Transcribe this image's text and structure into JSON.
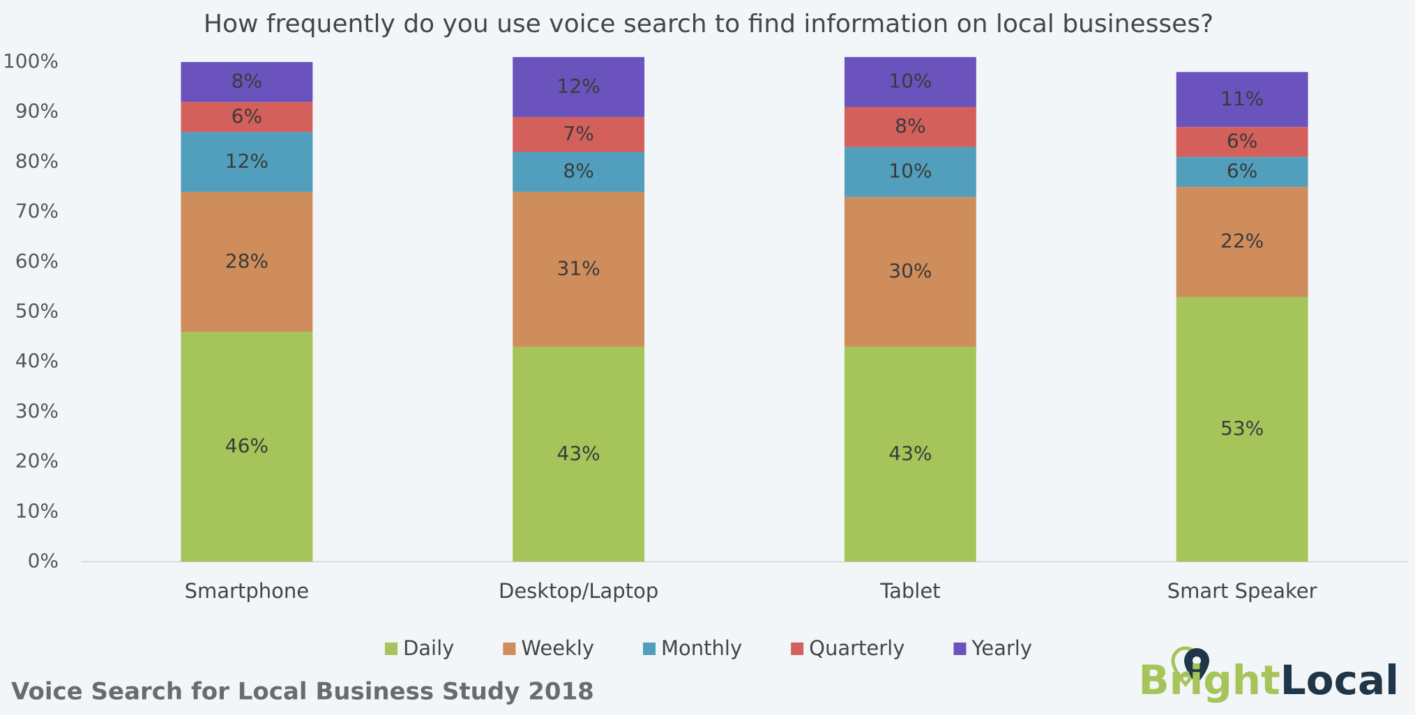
{
  "chart_data": {
    "type": "stacked_bar",
    "title": "How frequently do you use voice search to find information on local businesses?",
    "categories": [
      "Smartphone",
      "Desktop/Laptop",
      "Tablet",
      "Smart Speaker"
    ],
    "series": [
      {
        "name": "Daily",
        "color": "#a5c45a",
        "values": [
          46,
          43,
          43,
          53
        ],
        "value_labels": [
          "46%",
          "43%",
          "43%",
          "53%"
        ]
      },
      {
        "name": "Weekly",
        "color": "#d08d5c",
        "values": [
          28,
          31,
          30,
          22
        ],
        "value_labels": [
          "28%",
          "31%",
          "30%",
          "22%"
        ]
      },
      {
        "name": "Monthly",
        "color": "#529fbd",
        "values": [
          12,
          8,
          10,
          6
        ],
        "value_labels": [
          "12%",
          "8%",
          "10%",
          "6%"
        ]
      },
      {
        "name": "Quarterly",
        "color": "#d4605c",
        "values": [
          6,
          7,
          8,
          6
        ],
        "value_labels": [
          "6%",
          "7%",
          "8%",
          "6%"
        ]
      },
      {
        "name": "Yearly",
        "color": "#6a53bd",
        "values": [
          8,
          12,
          10,
          11
        ],
        "value_labels": [
          "8%",
          "12%",
          "10%",
          "11%"
        ]
      }
    ],
    "ylim": [
      0,
      100
    ],
    "yticks": [
      {
        "value": 0,
        "label": "0%"
      },
      {
        "value": 10,
        "label": "10%"
      },
      {
        "value": 20,
        "label": "20%"
      },
      {
        "value": 30,
        "label": "30%"
      },
      {
        "value": 40,
        "label": "40%"
      },
      {
        "value": 50,
        "label": "50%"
      },
      {
        "value": 60,
        "label": "60%"
      },
      {
        "value": 70,
        "label": "70%"
      },
      {
        "value": 80,
        "label": "80%"
      },
      {
        "value": 90,
        "label": "90%"
      },
      {
        "value": 100,
        "label": "100%"
      }
    ],
    "grid": false,
    "legend": "bottom",
    "source": "Voice Search for Local Business Study 2018",
    "logo": {
      "part1": "Bright",
      "part2": "Local"
    }
  }
}
